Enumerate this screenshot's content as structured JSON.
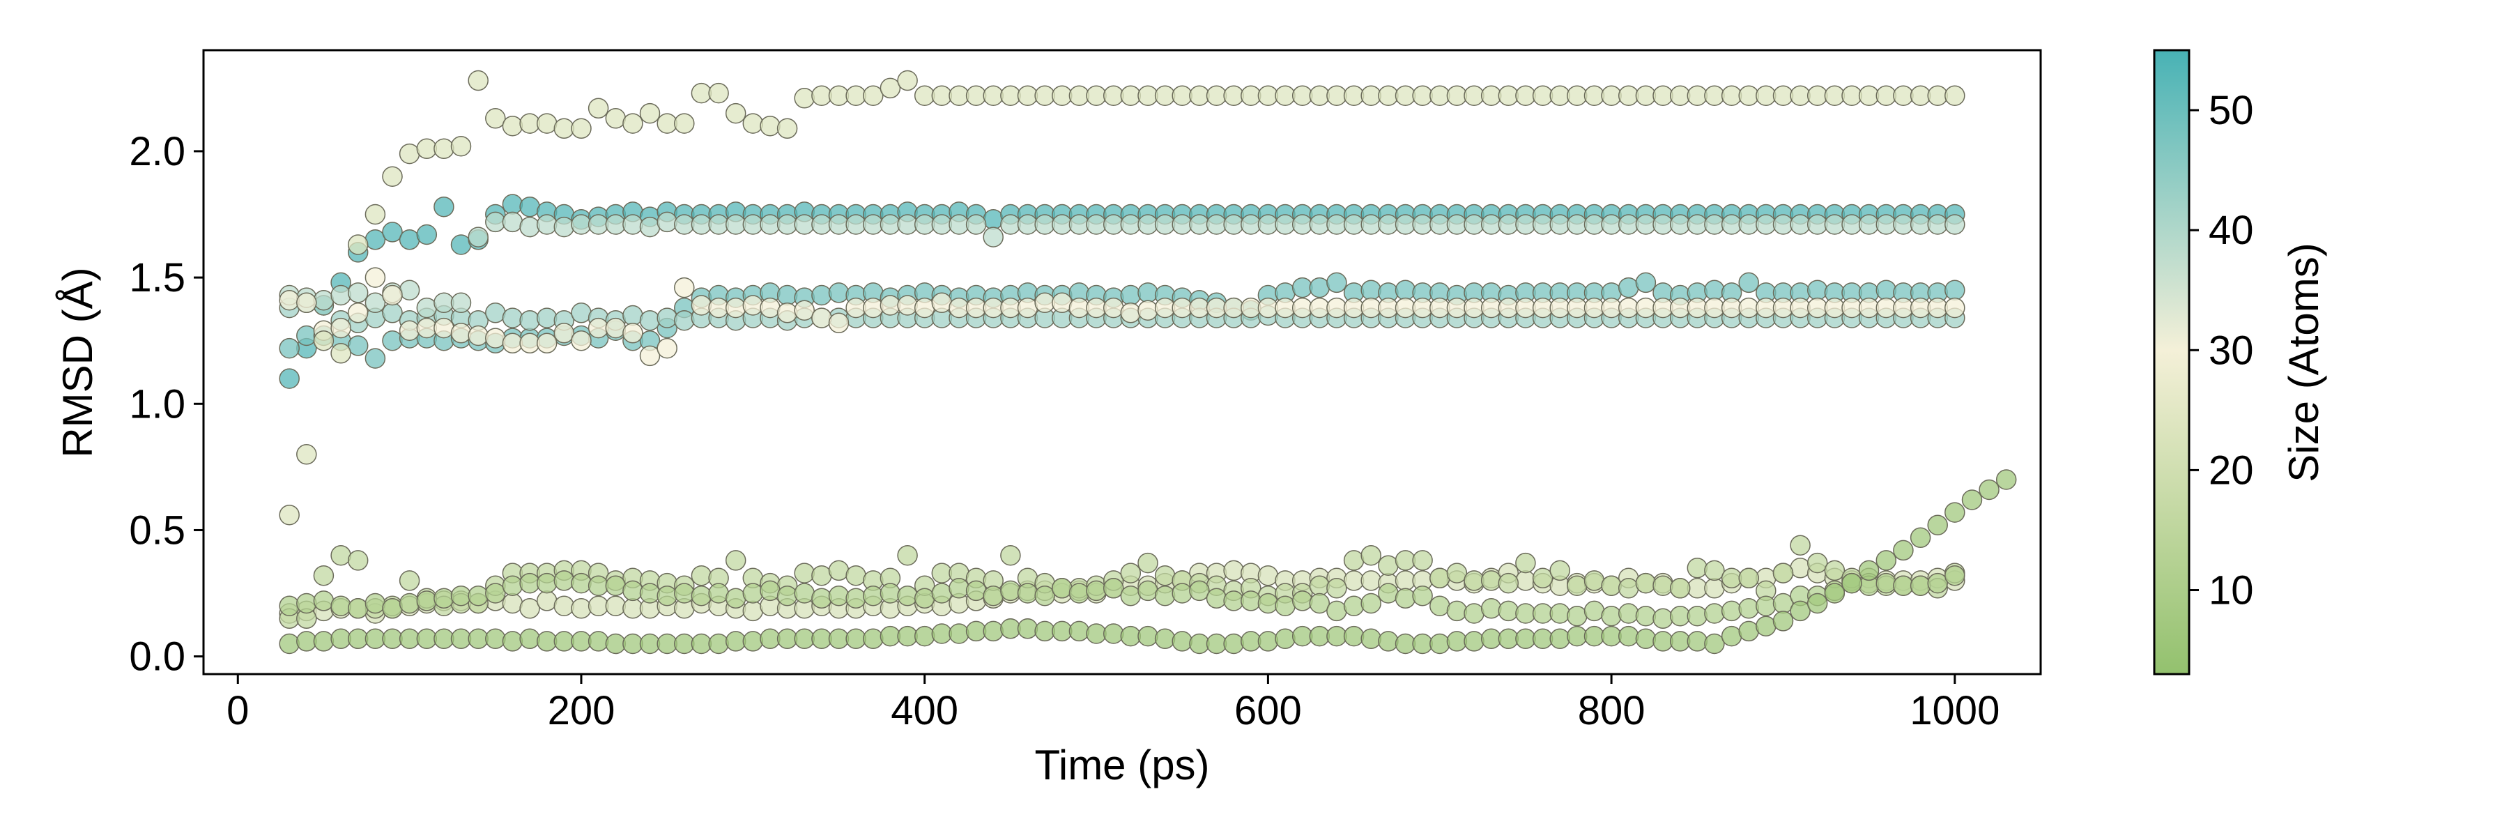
{
  "chart_data": {
    "type": "scatter",
    "title": "",
    "xlabel": "Time (ps)",
    "ylabel": "RMSD (Å)",
    "xlim": [
      -20,
      1050
    ],
    "ylim": [
      -0.07,
      2.4
    ],
    "xticks": [
      0,
      200,
      400,
      600,
      800,
      1000
    ],
    "xtick_labels": [
      "0",
      "200",
      "400",
      "600",
      "800",
      "1000"
    ],
    "yticks": [
      0.0,
      0.5,
      1.0,
      1.5,
      2.0
    ],
    "ytick_labels": [
      "0.0",
      "0.5",
      "1.0",
      "1.5",
      "2.0"
    ],
    "grid": false,
    "colorbar": {
      "label": "Size (Atoms)",
      "min": 3,
      "max": 55,
      "ticks": [
        10,
        20,
        30,
        40,
        50
      ],
      "tick_labels": [
        "10",
        "20",
        "30",
        "40",
        "50"
      ],
      "colormap": [
        "#93c16e",
        "#f4f0d8",
        "#48b2b5"
      ],
      "colormap_midpoint": 30
    },
    "series": [
      {
        "size": 53,
        "x_start": 30,
        "x_step": 10,
        "values": [
          1.1,
          1.22,
          1.39,
          1.48,
          1.6,
          1.65,
          1.68,
          1.65,
          1.67,
          1.78,
          1.63,
          1.65,
          1.75,
          1.79,
          1.78,
          1.76,
          1.75,
          1.73,
          1.74,
          1.75,
          1.76,
          1.74,
          1.76,
          1.75,
          1.75,
          1.75,
          1.76,
          1.75,
          1.75,
          1.75,
          1.76,
          1.75,
          1.75,
          1.75,
          1.75,
          1.75,
          1.76,
          1.75,
          1.75,
          1.76,
          1.75,
          1.73,
          1.75,
          1.75,
          1.75,
          1.75,
          1.75,
          1.75,
          1.75,
          1.75,
          1.75,
          1.75,
          1.75,
          1.75,
          1.75,
          1.75,
          1.75,
          1.75,
          1.75,
          1.75,
          1.75,
          1.75,
          1.75,
          1.75,
          1.75,
          1.75,
          1.75,
          1.75,
          1.75,
          1.75,
          1.75,
          1.75,
          1.75,
          1.75,
          1.75,
          1.75,
          1.75,
          1.75,
          1.75,
          1.75,
          1.75,
          1.75,
          1.75,
          1.75,
          1.75,
          1.75,
          1.75,
          1.75,
          1.75,
          1.75,
          1.75,
          1.75,
          1.75,
          1.75,
          1.75,
          1.75,
          1.75,
          1.75
        ]
      },
      {
        "size": 48,
        "x_start": 30,
        "x_step": 10,
        "values": [
          1.22,
          1.27,
          1.27,
          1.25,
          1.23,
          1.18,
          1.25,
          1.26,
          1.26,
          1.25,
          1.26,
          1.25,
          1.24,
          1.26,
          1.26,
          1.26,
          1.27,
          1.27,
          1.26,
          1.29,
          1.25,
          1.25,
          1.3,
          1.38,
          1.42,
          1.43,
          1.42,
          1.43,
          1.44,
          1.43,
          1.42,
          1.43,
          1.44,
          1.43,
          1.44,
          1.42,
          1.43,
          1.44,
          1.43,
          1.42,
          1.43,
          1.42,
          1.43,
          1.44,
          1.43,
          1.43,
          1.44,
          1.43,
          1.42,
          1.43,
          1.44,
          1.43,
          1.42,
          1.41,
          1.4,
          1.38,
          1.37,
          1.43,
          1.44,
          1.46,
          1.46,
          1.48,
          1.44,
          1.45,
          1.44,
          1.45,
          1.44,
          1.44,
          1.43,
          1.44,
          1.44,
          1.43,
          1.44,
          1.44,
          1.44,
          1.44,
          1.44,
          1.44,
          1.46,
          1.48,
          1.44,
          1.43,
          1.44,
          1.45,
          1.44,
          1.48,
          1.44,
          1.44,
          1.44,
          1.45,
          1.44,
          1.44,
          1.44,
          1.45,
          1.44,
          1.44,
          1.44,
          1.45
        ]
      },
      {
        "size": 42,
        "x_start": 30,
        "x_step": 10,
        "values": [
          1.38,
          1.4,
          1.39,
          1.33,
          1.32,
          1.34,
          1.36,
          1.33,
          1.34,
          1.35,
          1.34,
          1.33,
          1.36,
          1.34,
          1.33,
          1.34,
          1.33,
          1.36,
          1.34,
          1.33,
          1.35,
          1.33,
          1.34,
          1.33,
          1.34,
          1.34,
          1.33,
          1.34,
          1.34,
          1.33,
          1.34,
          1.34,
          1.34,
          1.34,
          1.34,
          1.34,
          1.34,
          1.34,
          1.34,
          1.34,
          1.34,
          1.34,
          1.34,
          1.34,
          1.34,
          1.34,
          1.34,
          1.34,
          1.34,
          1.34,
          1.34,
          1.34,
          1.34,
          1.34,
          1.34,
          1.34,
          1.34,
          1.35,
          1.34,
          1.34,
          1.34,
          1.34,
          1.34,
          1.34,
          1.34,
          1.34,
          1.34,
          1.34,
          1.34,
          1.34,
          1.34,
          1.34,
          1.34,
          1.34,
          1.34,
          1.34,
          1.34,
          1.34,
          1.34,
          1.34,
          1.34,
          1.34,
          1.34,
          1.34,
          1.34,
          1.34,
          1.34,
          1.34,
          1.34,
          1.34,
          1.34,
          1.34,
          1.34,
          1.34,
          1.34,
          1.34,
          1.34,
          1.34
        ]
      },
      {
        "size": 38,
        "x_start": 30,
        "x_step": 10,
        "values": [
          1.43,
          1.42,
          1.41,
          1.43,
          1.44,
          1.4,
          1.44,
          1.45,
          1.38,
          1.4,
          1.4,
          1.66,
          1.72,
          1.72,
          1.7,
          1.71,
          1.7,
          1.71,
          1.71,
          1.71,
          1.71,
          1.7,
          1.72,
          1.71,
          1.71,
          1.71,
          1.71,
          1.71,
          1.71,
          1.71,
          1.71,
          1.71,
          1.71,
          1.71,
          1.71,
          1.71,
          1.71,
          1.71,
          1.71,
          1.71,
          1.71,
          1.66,
          1.71,
          1.71,
          1.71,
          1.71,
          1.71,
          1.71,
          1.71,
          1.71,
          1.71,
          1.71,
          1.71,
          1.71,
          1.71,
          1.71,
          1.71,
          1.71,
          1.71,
          1.71,
          1.71,
          1.71,
          1.71,
          1.71,
          1.71,
          1.71,
          1.71,
          1.71,
          1.71,
          1.71,
          1.71,
          1.71,
          1.71,
          1.71,
          1.71,
          1.71,
          1.71,
          1.71,
          1.71,
          1.71,
          1.71,
          1.71,
          1.71,
          1.71,
          1.71,
          1.71,
          1.71,
          1.71,
          1.71,
          1.71,
          1.71,
          1.71,
          1.71,
          1.71,
          1.71,
          1.71,
          1.71,
          1.71
        ]
      },
      {
        "size": 30,
        "x_start": 30,
        "x_step": 10,
        "values": [
          1.41,
          1.4,
          1.29,
          1.3,
          1.36,
          1.5,
          1.43,
          1.29,
          1.3,
          1.3,
          1.28,
          1.27,
          1.26,
          1.24,
          1.24,
          1.24,
          1.28,
          1.25,
          1.3,
          1.3,
          1.28,
          1.19,
          1.22,
          1.46,
          1.39,
          1.38,
          1.38,
          1.39,
          1.38,
          1.36,
          1.37,
          1.34,
          1.32,
          1.38,
          1.38,
          1.39,
          1.39,
          1.38,
          1.4,
          1.38,
          1.38,
          1.38,
          1.38,
          1.38,
          1.4,
          1.4,
          1.38,
          1.38,
          1.38,
          1.36,
          1.37,
          1.38,
          1.38,
          1.38,
          1.38,
          1.38,
          1.38,
          1.38,
          1.38,
          1.38,
          1.38,
          1.38,
          1.38,
          1.38,
          1.38,
          1.38,
          1.38,
          1.38,
          1.38,
          1.38,
          1.38,
          1.38,
          1.38,
          1.38,
          1.38,
          1.38,
          1.38,
          1.38,
          1.38,
          1.38,
          1.38,
          1.38,
          1.38,
          1.38,
          1.38,
          1.38,
          1.38,
          1.38,
          1.38,
          1.38,
          1.38,
          1.38,
          1.38,
          1.38,
          1.38,
          1.38,
          1.38,
          1.38
        ]
      },
      {
        "size": 24,
        "x_start": 30,
        "x_step": 10,
        "values": [
          0.56,
          0.8,
          1.25,
          1.2,
          1.63,
          1.75,
          1.9,
          1.99,
          2.01,
          2.01,
          2.02,
          2.28,
          2.13,
          2.1,
          2.11,
          2.11,
          2.09,
          2.09,
          2.17,
          2.13,
          2.11,
          2.15,
          2.11,
          2.11,
          2.23,
          2.23,
          2.15,
          2.11,
          2.1,
          2.09,
          2.21,
          2.22,
          2.22,
          2.22,
          2.22,
          2.25,
          2.28,
          2.22,
          2.22,
          2.22,
          2.22,
          2.22,
          2.22,
          2.22,
          2.22,
          2.22,
          2.22,
          2.22,
          2.22,
          2.22,
          2.22,
          2.22,
          2.22,
          2.22,
          2.22,
          2.22,
          2.22,
          2.22,
          2.22,
          2.22,
          2.22,
          2.22,
          2.22,
          2.22,
          2.22,
          2.22,
          2.22,
          2.22,
          2.22,
          2.22,
          2.22,
          2.22,
          2.22,
          2.22,
          2.22,
          2.22,
          2.22,
          2.22,
          2.22,
          2.22,
          2.22,
          2.22,
          2.22,
          2.22,
          2.22,
          2.22,
          2.22,
          2.22,
          2.22,
          2.22,
          2.22,
          2.22,
          2.22,
          2.22,
          2.22,
          2.22,
          2.22,
          2.22
        ]
      },
      {
        "size": 22,
        "x_start": 30,
        "x_step": 10,
        "values": [
          0.17,
          0.18,
          0.18,
          0.19,
          0.19,
          0.17,
          0.19,
          0.2,
          0.21,
          0.22,
          0.22,
          0.21,
          0.22,
          0.21,
          0.19,
          0.22,
          0.2,
          0.19,
          0.2,
          0.2,
          0.19,
          0.19,
          0.2,
          0.19,
          0.21,
          0.2,
          0.19,
          0.18,
          0.2,
          0.19,
          0.19,
          0.2,
          0.19,
          0.19,
          0.2,
          0.19,
          0.2,
          0.21,
          0.2,
          0.21,
          0.22,
          0.23,
          0.25,
          0.26,
          0.26,
          0.25,
          0.26,
          0.25,
          0.27,
          0.28,
          0.28,
          0.29,
          0.3,
          0.33,
          0.33,
          0.34,
          0.33,
          0.32,
          0.3,
          0.3,
          0.31,
          0.31,
          0.3,
          0.3,
          0.29,
          0.3,
          0.3,
          0.31,
          0.3,
          0.29,
          0.31,
          0.33,
          0.3,
          0.29,
          0.28,
          0.29,
          0.29,
          0.28,
          0.31,
          0.29,
          0.29,
          0.27,
          0.27,
          0.27,
          0.29,
          0.31,
          0.31,
          0.33,
          0.35,
          0.33,
          0.31,
          0.3,
          0.31,
          0.3,
          0.3,
          0.3,
          0.31,
          0.3
        ]
      },
      {
        "size": 16,
        "x_start": 30,
        "x_step": 10,
        "values": [
          0.15,
          0.15,
          0.32,
          0.4,
          0.38,
          0.19,
          0.2,
          0.3,
          0.23,
          0.2,
          0.21,
          0.21,
          0.28,
          0.33,
          0.33,
          0.33,
          0.34,
          0.34,
          0.33,
          0.3,
          0.31,
          0.3,
          0.29,
          0.28,
          0.32,
          0.31,
          0.38,
          0.31,
          0.29,
          0.28,
          0.33,
          0.32,
          0.34,
          0.32,
          0.3,
          0.31,
          0.4,
          0.28,
          0.33,
          0.33,
          0.31,
          0.3,
          0.4,
          0.31,
          0.29,
          0.27,
          0.27,
          0.28,
          0.3,
          0.33,
          0.37,
          0.32,
          0.3,
          0.29,
          0.28,
          0.26,
          0.27,
          0.24,
          0.25,
          0.25,
          0.28,
          0.27,
          0.38,
          0.4,
          0.36,
          0.38,
          0.38,
          0.31,
          0.33,
          0.3,
          0.3,
          0.29,
          0.37,
          0.31,
          0.34,
          0.28,
          0.3,
          0.28,
          0.27,
          0.29,
          0.28,
          0.27,
          0.35,
          0.34,
          0.31,
          0.31,
          0.26,
          0.33,
          0.44,
          0.37,
          0.34,
          0.31,
          0.29,
          0.28,
          0.28,
          0.28,
          0.27,
          0.33
        ]
      },
      {
        "size": 12,
        "x_start": 30,
        "x_step": 10,
        "values": [
          0.2,
          0.21,
          0.22,
          0.2,
          0.19,
          0.21,
          0.19,
          0.21,
          0.22,
          0.23,
          0.24,
          0.24,
          0.25,
          0.28,
          0.29,
          0.29,
          0.3,
          0.29,
          0.28,
          0.28,
          0.26,
          0.25,
          0.24,
          0.25,
          0.24,
          0.25,
          0.23,
          0.25,
          0.26,
          0.24,
          0.25,
          0.23,
          0.24,
          0.23,
          0.24,
          0.25,
          0.24,
          0.23,
          0.25,
          0.27,
          0.26,
          0.24,
          0.26,
          0.25,
          0.24,
          0.27,
          0.25,
          0.26,
          0.27,
          0.24,
          0.26,
          0.24,
          0.25,
          0.26,
          0.23,
          0.22,
          0.22,
          0.21,
          0.2,
          0.22,
          0.21,
          0.18,
          0.2,
          0.21,
          0.25,
          0.23,
          0.24,
          0.2,
          0.18,
          0.17,
          0.19,
          0.18,
          0.17,
          0.17,
          0.17,
          0.16,
          0.18,
          0.16,
          0.17,
          0.16,
          0.15,
          0.16,
          0.16,
          0.17,
          0.18,
          0.19,
          0.2,
          0.21,
          0.24,
          0.24,
          0.26,
          0.29,
          0.28,
          0.29,
          0.28,
          0.28,
          0.29,
          0.32
        ]
      },
      {
        "size": 7,
        "x_start": 30,
        "x_step": 10,
        "values": [
          0.05,
          0.06,
          0.06,
          0.07,
          0.07,
          0.07,
          0.07,
          0.07,
          0.07,
          0.07,
          0.07,
          0.07,
          0.07,
          0.06,
          0.07,
          0.06,
          0.06,
          0.06,
          0.06,
          0.05,
          0.05,
          0.05,
          0.05,
          0.05,
          0.05,
          0.05,
          0.06,
          0.06,
          0.07,
          0.07,
          0.07,
          0.07,
          0.07,
          0.07,
          0.07,
          0.08,
          0.08,
          0.08,
          0.09,
          0.09,
          0.1,
          0.1,
          0.11,
          0.11,
          0.1,
          0.1,
          0.1,
          0.09,
          0.09,
          0.08,
          0.08,
          0.07,
          0.06,
          0.05,
          0.05,
          0.05,
          0.06,
          0.06,
          0.07,
          0.08,
          0.08,
          0.08,
          0.08,
          0.07,
          0.06,
          0.05,
          0.05,
          0.05,
          0.06,
          0.06,
          0.07,
          0.07,
          0.07,
          0.07,
          0.07,
          0.08,
          0.08,
          0.08,
          0.08,
          0.07,
          0.06,
          0.06,
          0.06,
          0.05,
          0.08,
          0.1,
          0.12,
          0.14,
          0.18,
          0.21,
          0.25,
          0.29,
          0.34,
          0.38,
          0.42,
          0.47,
          0.52,
          0.57,
          0.62,
          0.66,
          0.7
        ]
      }
    ]
  }
}
